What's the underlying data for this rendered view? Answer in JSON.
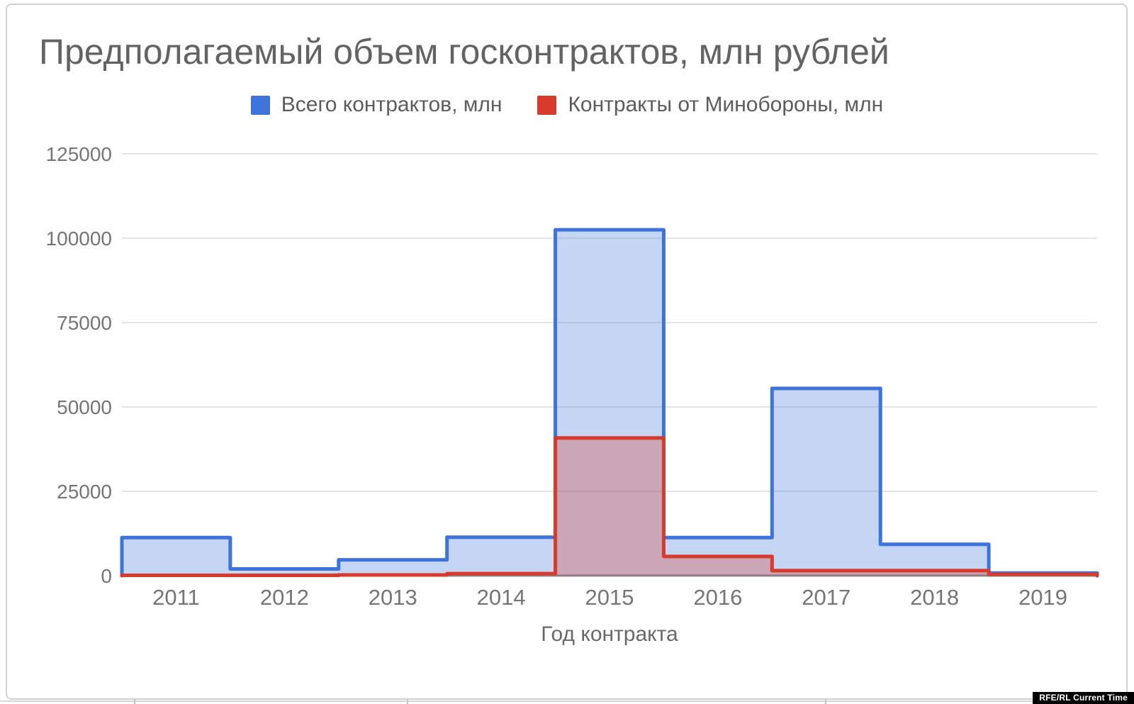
{
  "watermark": {
    "text": "RFE/RL Current Time",
    "bg": "#000000",
    "fg": "#ffffff"
  },
  "chart_data": {
    "type": "area",
    "stepped": true,
    "title": "Предполагаемый объем госконтрактов, млн рублей",
    "xlabel": "Год контракта",
    "ylabel": "",
    "categories": [
      "2011",
      "2012",
      "2013",
      "2014",
      "2015",
      "2016",
      "2017",
      "2018",
      "2019"
    ],
    "yticks": [
      0,
      25000,
      50000,
      75000,
      100000,
      125000
    ],
    "ylim": [
      0,
      125000
    ],
    "grid": true,
    "legend_position": "top",
    "series": [
      {
        "name": "Всего контрактов, млн",
        "color": "#3e73dc",
        "fill_opacity": 0.3,
        "values": [
          11300,
          2000,
          4700,
          11400,
          102500,
          11300,
          55500,
          9300,
          800
        ]
      },
      {
        "name": "Контракты от Минобороны, млн",
        "color": "#d83b2b",
        "fill_opacity": 0.3,
        "values": [
          100,
          100,
          200,
          600,
          40800,
          5700,
          1500,
          1500,
          400
        ]
      }
    ],
    "colors": {
      "title_text": "#636363",
      "axis_text": "#757575",
      "legend_text": "#5c5c5c",
      "gridline": "#e4e4e4",
      "baseline": "#8f8f8f"
    }
  }
}
